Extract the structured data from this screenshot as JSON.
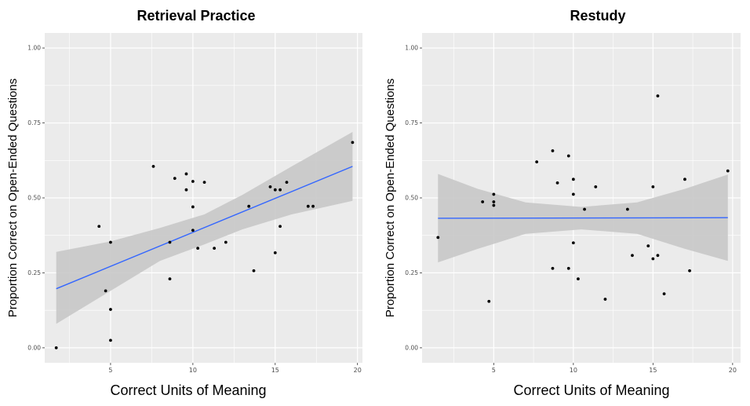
{
  "chart_data": [
    {
      "type": "scatter",
      "title": "Retrieval Practice",
      "xlabel": "Correct Units of Meaning",
      "ylabel": "Proportion Correct on Open-Ended Questions",
      "xlim": [
        1,
        20.3
      ],
      "ylim": [
        -0.05,
        1.05
      ],
      "xticks": [
        5,
        10,
        15,
        20
      ],
      "yticks": [
        0.0,
        0.25,
        0.5,
        0.75,
        1.0
      ],
      "ytick_labels": [
        "0.00",
        "0.25",
        "0.50",
        "0.75",
        "1.00"
      ],
      "grid": true,
      "points": [
        {
          "x": 1.7,
          "y": 0.0
        },
        {
          "x": 4.3,
          "y": 0.405
        },
        {
          "x": 4.7,
          "y": 0.19
        },
        {
          "x": 5.0,
          "y": 0.352
        },
        {
          "x": 5.0,
          "y": 0.128
        },
        {
          "x": 5.0,
          "y": 0.025
        },
        {
          "x": 7.6,
          "y": 0.605
        },
        {
          "x": 8.6,
          "y": 0.352
        },
        {
          "x": 8.6,
          "y": 0.23
        },
        {
          "x": 8.9,
          "y": 0.565
        },
        {
          "x": 9.6,
          "y": 0.58
        },
        {
          "x": 9.6,
          "y": 0.527
        },
        {
          "x": 10.0,
          "y": 0.555
        },
        {
          "x": 10.0,
          "y": 0.47
        },
        {
          "x": 10.0,
          "y": 0.392
        },
        {
          "x": 10.3,
          "y": 0.332
        },
        {
          "x": 10.7,
          "y": 0.552
        },
        {
          "x": 11.3,
          "y": 0.332
        },
        {
          "x": 12.0,
          "y": 0.352
        },
        {
          "x": 13.4,
          "y": 0.472
        },
        {
          "x": 13.7,
          "y": 0.257
        },
        {
          "x": 14.7,
          "y": 0.537
        },
        {
          "x": 15.0,
          "y": 0.527
        },
        {
          "x": 15.0,
          "y": 0.317
        },
        {
          "x": 15.3,
          "y": 0.527
        },
        {
          "x": 15.3,
          "y": 0.405
        },
        {
          "x": 15.7,
          "y": 0.552
        },
        {
          "x": 17.0,
          "y": 0.472
        },
        {
          "x": 17.3,
          "y": 0.472
        },
        {
          "x": 19.7,
          "y": 0.685
        }
      ],
      "fit_line": {
        "x": [
          1.7,
          19.7
        ],
        "y": [
          0.197,
          0.605
        ]
      },
      "confidence_band": {
        "x": [
          1.7,
          5,
          8,
          10.7,
          13,
          16,
          19.7
        ],
        "upper": [
          0.32,
          0.355,
          0.4,
          0.445,
          0.51,
          0.605,
          0.72
        ],
        "lower": [
          0.08,
          0.19,
          0.29,
          0.345,
          0.395,
          0.445,
          0.49
        ]
      },
      "colors": {
        "panel": "#ebebeb",
        "grid": "#ffffff",
        "line": "#3366ff",
        "band": "#c8c8c8",
        "point": "#000000"
      }
    },
    {
      "type": "scatter",
      "title": "Restudy",
      "xlabel": "Correct Units of Meaning",
      "ylabel": "Proportion Correct on Open-Ended Questions",
      "xlim": [
        0.5,
        20.5
      ],
      "ylim": [
        -0.05,
        1.05
      ],
      "xticks": [
        5,
        10,
        15,
        20
      ],
      "yticks": [
        0.0,
        0.25,
        0.5,
        0.75,
        1.0
      ],
      "ytick_labels": [
        "0.00",
        "0.25",
        "0.50",
        "0.75",
        "1.00"
      ],
      "grid": true,
      "points": [
        {
          "x": 1.5,
          "y": 0.368
        },
        {
          "x": 4.3,
          "y": 0.487
        },
        {
          "x": 4.7,
          "y": 0.155
        },
        {
          "x": 5.0,
          "y": 0.512
        },
        {
          "x": 5.0,
          "y": 0.487
        },
        {
          "x": 5.0,
          "y": 0.475
        },
        {
          "x": 7.7,
          "y": 0.62
        },
        {
          "x": 8.7,
          "y": 0.657
        },
        {
          "x": 8.7,
          "y": 0.265
        },
        {
          "x": 9.0,
          "y": 0.55
        },
        {
          "x": 9.7,
          "y": 0.64
        },
        {
          "x": 9.7,
          "y": 0.265
        },
        {
          "x": 10.0,
          "y": 0.562
        },
        {
          "x": 10.0,
          "y": 0.512
        },
        {
          "x": 10.0,
          "y": 0.35
        },
        {
          "x": 10.3,
          "y": 0.23
        },
        {
          "x": 10.7,
          "y": 0.462
        },
        {
          "x": 11.4,
          "y": 0.537
        },
        {
          "x": 12.0,
          "y": 0.162
        },
        {
          "x": 13.4,
          "y": 0.462
        },
        {
          "x": 13.7,
          "y": 0.308
        },
        {
          "x": 14.7,
          "y": 0.34
        },
        {
          "x": 15.0,
          "y": 0.537
        },
        {
          "x": 15.0,
          "y": 0.297
        },
        {
          "x": 15.3,
          "y": 0.84
        },
        {
          "x": 15.3,
          "y": 0.308
        },
        {
          "x": 15.7,
          "y": 0.18
        },
        {
          "x": 17.0,
          "y": 0.562
        },
        {
          "x": 17.3,
          "y": 0.257
        },
        {
          "x": 19.7,
          "y": 0.59
        }
      ],
      "fit_line": {
        "x": [
          1.5,
          19.7
        ],
        "y": [
          0.432,
          0.434
        ]
      },
      "confidence_band": {
        "x": [
          1.5,
          4,
          7,
          10.5,
          14,
          17,
          19.7
        ],
        "upper": [
          0.58,
          0.53,
          0.485,
          0.47,
          0.485,
          0.53,
          0.578
        ],
        "lower": [
          0.285,
          0.33,
          0.38,
          0.395,
          0.38,
          0.33,
          0.29
        ]
      },
      "colors": {
        "panel": "#ebebeb",
        "grid": "#ffffff",
        "line": "#3366ff",
        "band": "#c8c8c8",
        "point": "#000000"
      }
    }
  ]
}
